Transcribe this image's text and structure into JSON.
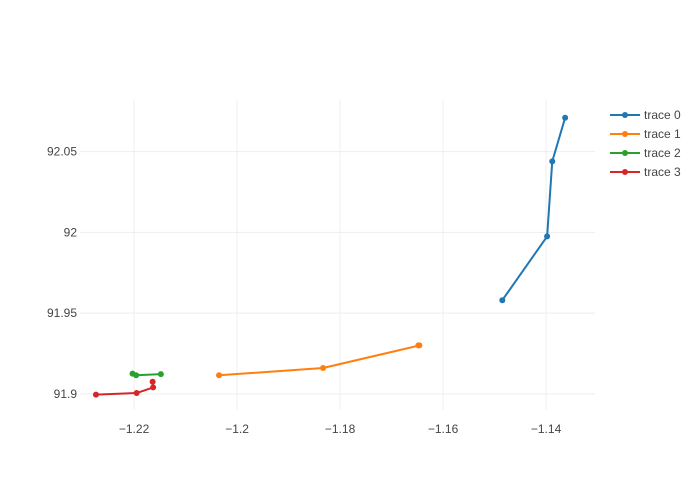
{
  "chart_data": {
    "type": "line",
    "title": "",
    "xlabel": "",
    "ylabel": "",
    "xlim": [
      -1.2305,
      -1.1305
    ],
    "ylim": [
      91.89,
      92.082
    ],
    "x_ticks": [
      -1.22,
      -1.2,
      -1.18,
      -1.16,
      -1.14
    ],
    "x_tick_labels": [
      "−1.22",
      "−1.2",
      "−1.18",
      "−1.16",
      "−1.14"
    ],
    "y_ticks": [
      91.9,
      91.95,
      92,
      92.05
    ],
    "y_tick_labels": [
      "91.9",
      "91.95",
      "92",
      "92.05"
    ],
    "grid": true,
    "legend": "top-right",
    "series": [
      {
        "name": "trace 0",
        "color": "#1f77b4",
        "x": [
          -1.1485,
          -1.1398,
          -1.1388,
          -1.1363
        ],
        "y": [
          91.958,
          91.9975,
          92.044,
          92.071
        ]
      },
      {
        "name": "trace 1",
        "color": "#ff7f0e",
        "x": [
          -1.2035,
          -1.1833,
          -1.1646,
          -1.1648
        ],
        "y": [
          91.9115,
          91.916,
          91.93,
          91.93
        ]
      },
      {
        "name": "trace 2",
        "color": "#2ca02c",
        "x": [
          -1.2203,
          -1.2196,
          -1.2148
        ],
        "y": [
          91.9125,
          91.9115,
          91.9122
        ]
      },
      {
        "name": "trace 3",
        "color": "#d62728",
        "x": [
          -1.2274,
          -1.2195,
          -1.2163,
          -1.2164
        ],
        "y": [
          91.8995,
          91.9005,
          91.904,
          91.9075
        ]
      }
    ]
  }
}
